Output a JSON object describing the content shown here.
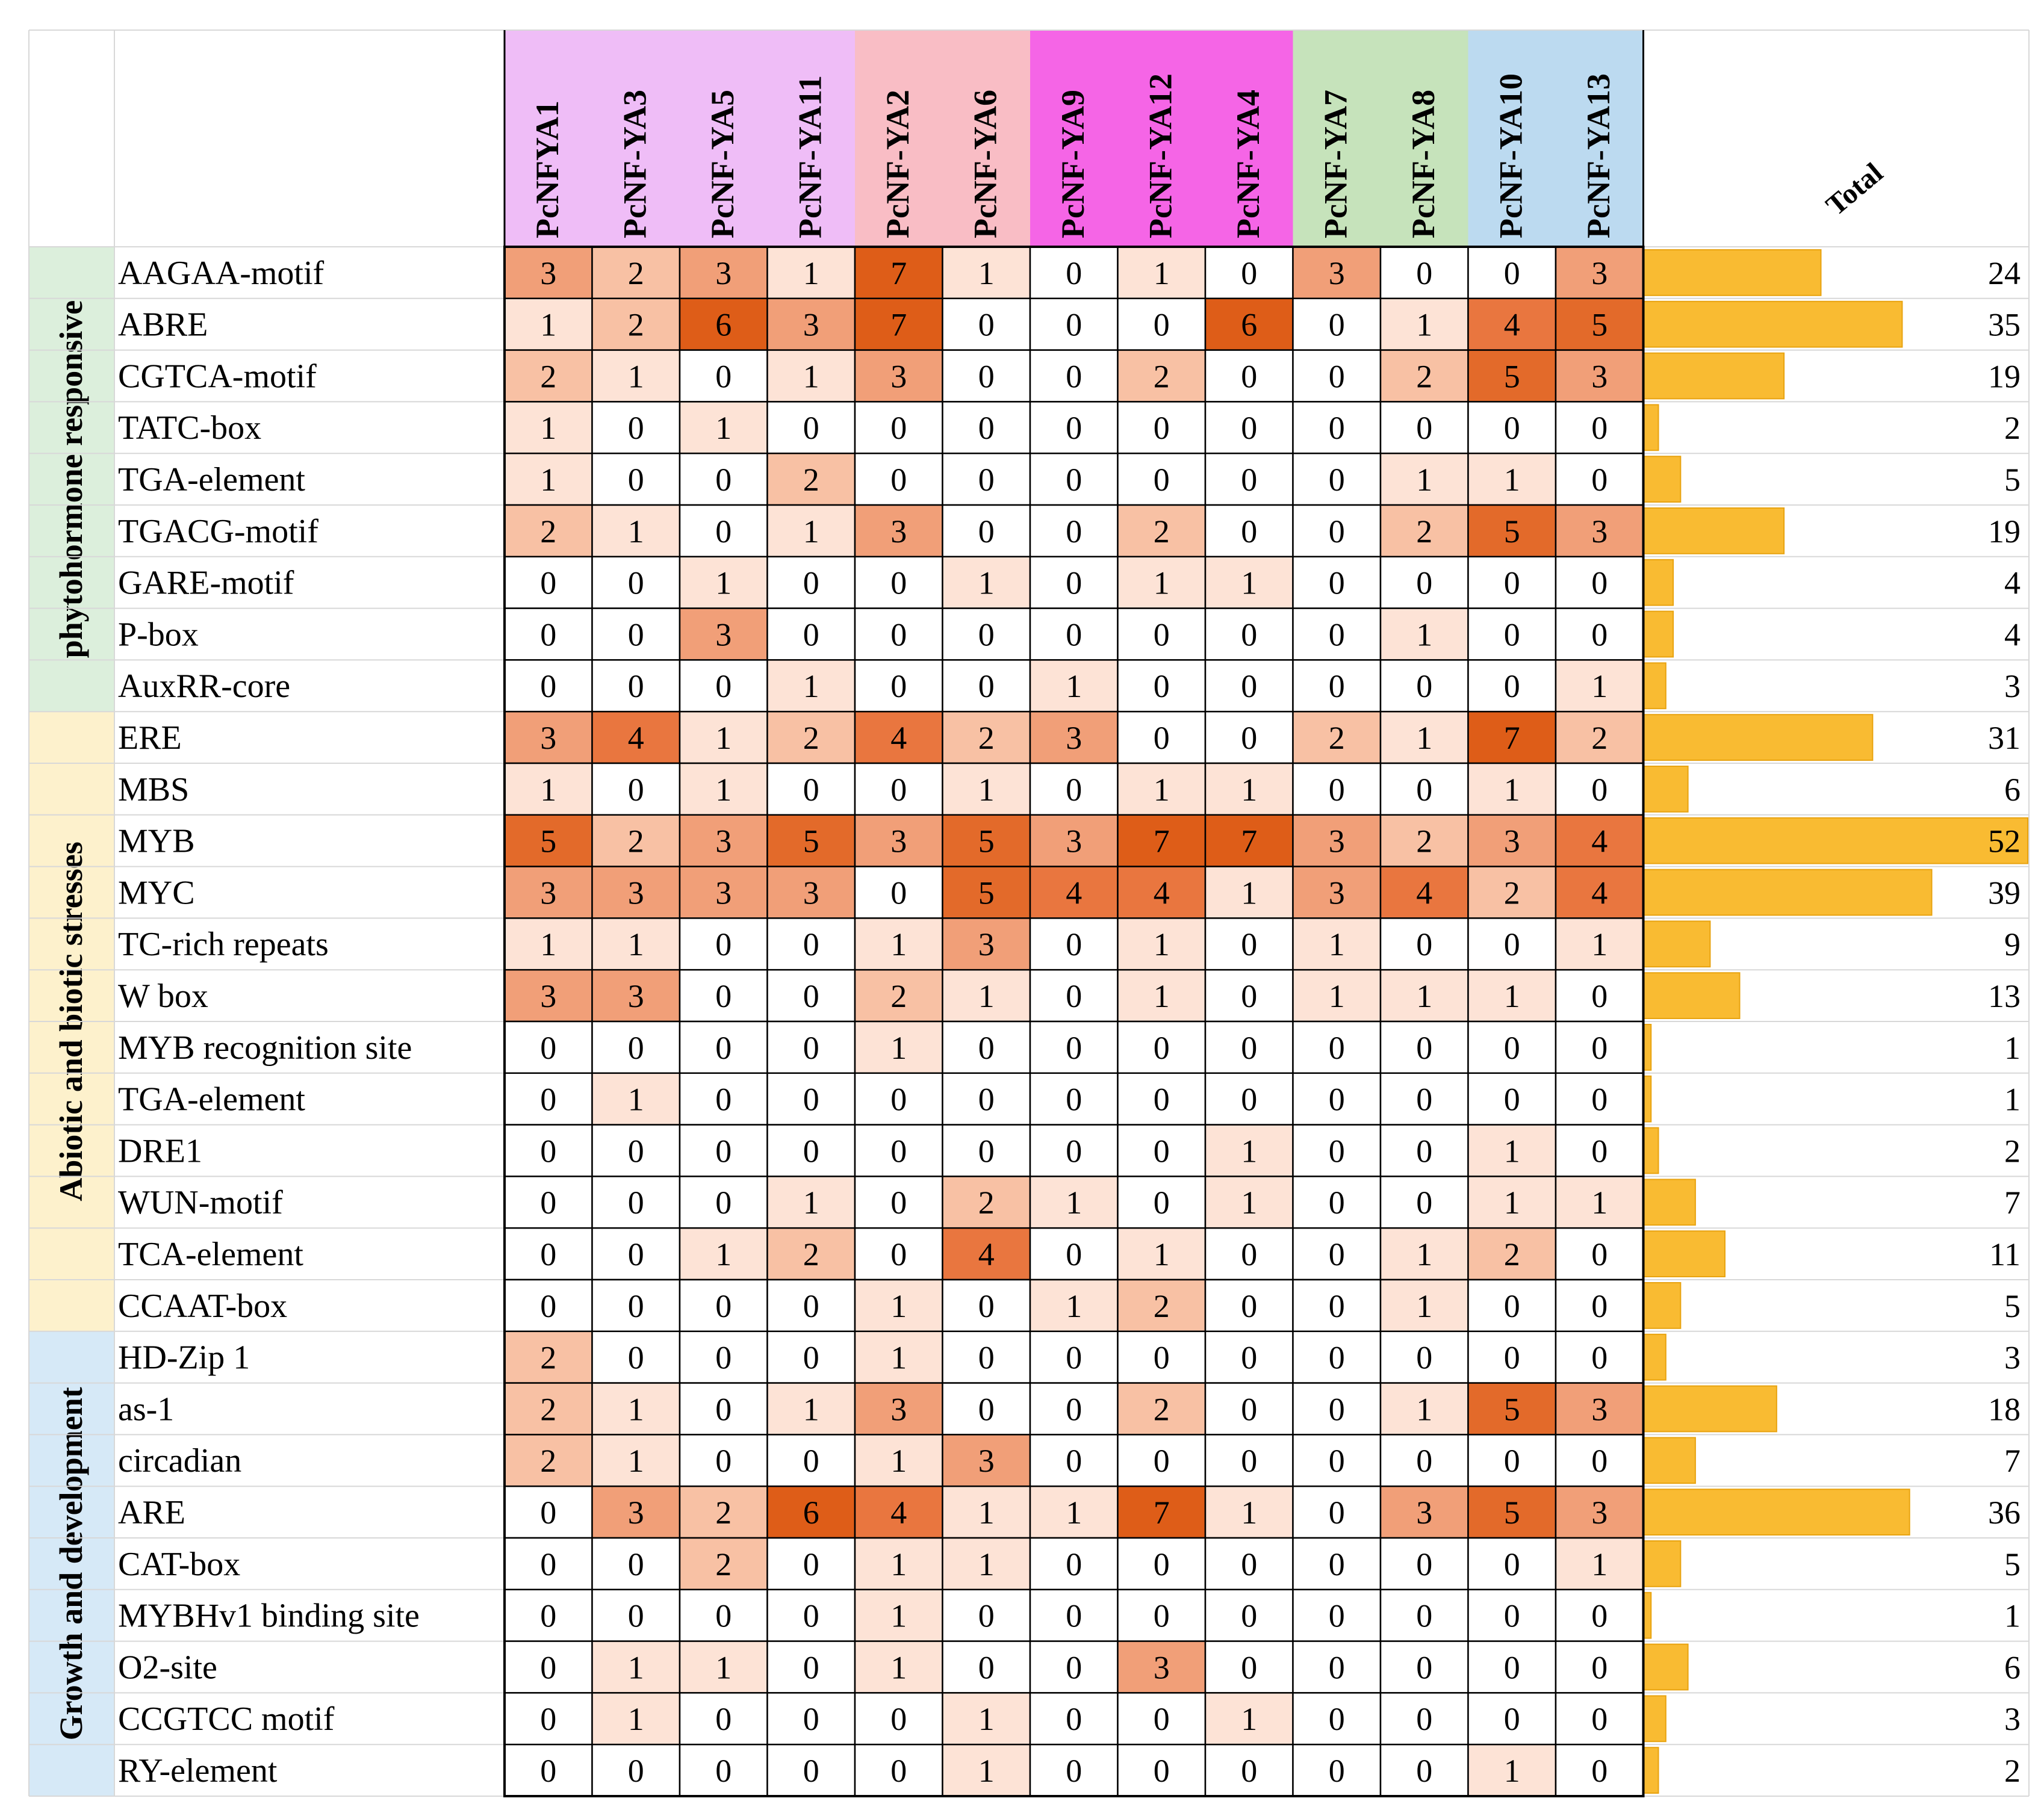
{
  "chart_data": {
    "type": "heatmap",
    "title": "",
    "total_label": "Total",
    "columns": [
      {
        "label": "PcNFYA1",
        "group": 0
      },
      {
        "label": "PcNF-YA3",
        "group": 0
      },
      {
        "label": "PcNF-YA5",
        "group": 0
      },
      {
        "label": "PcNF-YA11",
        "group": 0
      },
      {
        "label": "PcNF-YA2",
        "group": 1
      },
      {
        "label": "PcNF-YA6",
        "group": 1
      },
      {
        "label": "PcNF-YA9",
        "group": 2
      },
      {
        "label": "PcNF-YA12",
        "group": 2
      },
      {
        "label": "PcNF-YA4",
        "group": 2
      },
      {
        "label": "PcNF-YA7",
        "group": 3
      },
      {
        "label": "PcNF-YA8",
        "group": 3
      },
      {
        "label": "PcNF-YA10",
        "group": 4
      },
      {
        "label": "PcNF-YA13",
        "group": 4
      }
    ],
    "column_group_colors": [
      "#efbdf7",
      "#f9bdc5",
      "#f565e6",
      "#c6e3bb",
      "#bcdaf0"
    ],
    "categories": [
      {
        "name": "phytohormone responsive",
        "color": "#dcefdc",
        "rows": [
          {
            "label": "AAGAA-motif",
            "values": [
              3,
              2,
              3,
              1,
              7,
              1,
              0,
              1,
              0,
              3,
              0,
              0,
              3
            ],
            "total": 24
          },
          {
            "label": "ABRE",
            "values": [
              1,
              2,
              6,
              3,
              7,
              0,
              0,
              0,
              6,
              0,
              1,
              4,
              5
            ],
            "total": 35
          },
          {
            "label": "CGTCA-motif",
            "values": [
              2,
              1,
              0,
              1,
              3,
              0,
              0,
              2,
              0,
              0,
              2,
              5,
              3
            ],
            "total": 19
          },
          {
            "label": "TATC-box",
            "values": [
              1,
              0,
              1,
              0,
              0,
              0,
              0,
              0,
              0,
              0,
              0,
              0,
              0
            ],
            "total": 2
          },
          {
            "label": "TGA-element",
            "values": [
              1,
              0,
              0,
              2,
              0,
              0,
              0,
              0,
              0,
              0,
              1,
              1,
              0
            ],
            "total": 5
          },
          {
            "label": "TGACG-motif",
            "values": [
              2,
              1,
              0,
              1,
              3,
              0,
              0,
              2,
              0,
              0,
              2,
              5,
              3
            ],
            "total": 19
          },
          {
            "label": "GARE-motif",
            "values": [
              0,
              0,
              1,
              0,
              0,
              1,
              0,
              1,
              1,
              0,
              0,
              0,
              0
            ],
            "total": 4
          },
          {
            "label": "P-box",
            "values": [
              0,
              0,
              3,
              0,
              0,
              0,
              0,
              0,
              0,
              0,
              1,
              0,
              0
            ],
            "total": 4
          },
          {
            "label": "AuxRR-core",
            "values": [
              0,
              0,
              0,
              1,
              0,
              0,
              1,
              0,
              0,
              0,
              0,
              0,
              1
            ],
            "total": 3
          }
        ]
      },
      {
        "name": "Abiotic and biotic stresses",
        "color": "#fdf1cc",
        "rows": [
          {
            "label": "ERE",
            "values": [
              3,
              4,
              1,
              2,
              4,
              2,
              3,
              0,
              0,
              2,
              1,
              7,
              2
            ],
            "total": 31
          },
          {
            "label": "MBS",
            "values": [
              1,
              0,
              1,
              0,
              0,
              1,
              0,
              1,
              1,
              0,
              0,
              1,
              0
            ],
            "total": 6
          },
          {
            "label": "MYB",
            "values": [
              5,
              2,
              3,
              5,
              3,
              5,
              3,
              7,
              7,
              3,
              2,
              3,
              4
            ],
            "total": 52
          },
          {
            "label": "MYC",
            "values": [
              3,
              3,
              3,
              3,
              0,
              5,
              4,
              4,
              1,
              3,
              4,
              2,
              4
            ],
            "total": 39
          },
          {
            "label": "TC-rich repeats",
            "values": [
              1,
              1,
              0,
              0,
              1,
              3,
              0,
              1,
              0,
              1,
              0,
              0,
              1
            ],
            "total": 9
          },
          {
            "label": "W box",
            "values": [
              3,
              3,
              0,
              0,
              2,
              1,
              0,
              1,
              0,
              1,
              1,
              1,
              0
            ],
            "total": 13
          },
          {
            "label": "MYB recognition site",
            "values": [
              0,
              0,
              0,
              0,
              1,
              0,
              0,
              0,
              0,
              0,
              0,
              0,
              0
            ],
            "total": 1
          },
          {
            "label": "TGA-element",
            "values": [
              0,
              1,
              0,
              0,
              0,
              0,
              0,
              0,
              0,
              0,
              0,
              0,
              0
            ],
            "total": 1
          },
          {
            "label": "DRE1",
            "values": [
              0,
              0,
              0,
              0,
              0,
              0,
              0,
              0,
              1,
              0,
              0,
              1,
              0
            ],
            "total": 2
          },
          {
            "label": "WUN-motif",
            "values": [
              0,
              0,
              0,
              1,
              0,
              2,
              1,
              0,
              1,
              0,
              0,
              1,
              1
            ],
            "total": 7
          },
          {
            "label": "TCA-element",
            "values": [
              0,
              0,
              1,
              2,
              0,
              4,
              0,
              1,
              0,
              0,
              1,
              2,
              0
            ],
            "total": 11
          },
          {
            "label": "CCAAT-box",
            "values": [
              0,
              0,
              0,
              0,
              1,
              0,
              1,
              2,
              0,
              0,
              1,
              0,
              0
            ],
            "total": 5
          }
        ]
      },
      {
        "name": "Growth and development",
        "color": "#d6e9f7",
        "rows": [
          {
            "label": "HD-Zip 1",
            "values": [
              2,
              0,
              0,
              0,
              1,
              0,
              0,
              0,
              0,
              0,
              0,
              0,
              0
            ],
            "total": 3
          },
          {
            "label": "as-1",
            "values": [
              2,
              1,
              0,
              1,
              3,
              0,
              0,
              2,
              0,
              0,
              1,
              5,
              3
            ],
            "total": 18
          },
          {
            "label": "circadian",
            "values": [
              2,
              1,
              0,
              0,
              1,
              3,
              0,
              0,
              0,
              0,
              0,
              0,
              0
            ],
            "total": 7
          },
          {
            "label": "ARE",
            "values": [
              0,
              3,
              2,
              6,
              4,
              1,
              1,
              7,
              1,
              0,
              3,
              5,
              3
            ],
            "total": 36
          },
          {
            "label": "CAT-box",
            "values": [
              0,
              0,
              2,
              0,
              1,
              1,
              0,
              0,
              0,
              0,
              0,
              0,
              1
            ],
            "total": 5
          },
          {
            "label": "MYBHv1 binding site",
            "values": [
              0,
              0,
              0,
              0,
              1,
              0,
              0,
              0,
              0,
              0,
              0,
              0,
              0
            ],
            "total": 1
          },
          {
            "label": "O2-site",
            "values": [
              0,
              1,
              1,
              0,
              1,
              0,
              0,
              3,
              0,
              0,
              0,
              0,
              0
            ],
            "total": 6
          },
          {
            "label": "CCGTCC motif",
            "values": [
              0,
              1,
              0,
              0,
              0,
              1,
              0,
              0,
              1,
              0,
              0,
              0,
              0
            ],
            "total": 3
          },
          {
            "label": "RY-element",
            "values": [
              0,
              0,
              0,
              0,
              0,
              1,
              0,
              0,
              0,
              0,
              0,
              1,
              0
            ],
            "total": 2
          }
        ]
      }
    ],
    "color_scale": {
      "0": "#ffffff",
      "1": "#fde3d6",
      "2": "#f8c1a4",
      "3": "#f19f78",
      "4": "#e9763f",
      "5": "#e36a2a",
      "6": "#de5d18",
      "7": "#de5d18"
    },
    "total_bar_color": "#f8b41c",
    "total_max": 52
  }
}
